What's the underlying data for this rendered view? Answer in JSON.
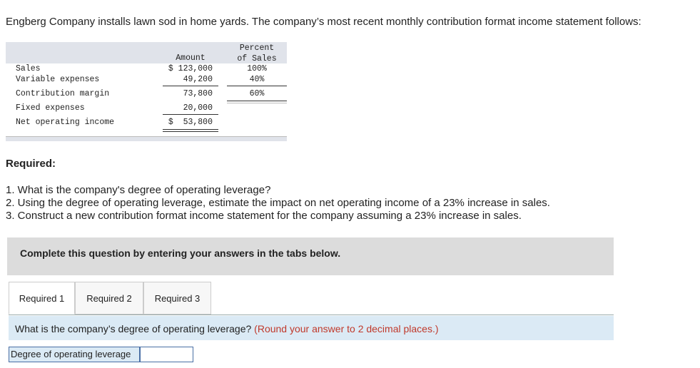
{
  "intro": "Engberg Company installs lawn sod in home yards. The company’s most recent monthly contribution format income statement follows:",
  "statement": {
    "headers": {
      "amount": "Amount",
      "percent": "Percent of Sales"
    },
    "rows": [
      [
        "Sales",
        "$ 123,000",
        "100%"
      ],
      [
        "Variable expenses",
        "49,200",
        "40%"
      ],
      [
        "Contribution margin",
        "73,800",
        "60%"
      ],
      [
        "Fixed expenses",
        "20,000"
      ],
      [
        "Net operating income",
        "$  53,800"
      ]
    ]
  },
  "required": {
    "heading": "Required:",
    "items": [
      "1. What is the company's degree of operating leverage?",
      "2. Using the degree of operating leverage, estimate the impact on net operating income of a 23% increase in sales.",
      "3. Construct a new contribution format income statement for the company assuming a 23% increase in sales."
    ]
  },
  "instruction": "Complete this question by entering your answers in the tabs below.",
  "tabs": [
    "Required 1",
    "Required 2",
    "Required 3"
  ],
  "question": {
    "text": "What is the company’s degree of operating leverage?",
    "note": "(Round your answer to 2 decimal places.)"
  },
  "answer": {
    "label": "Degree of operating leverage"
  }
}
